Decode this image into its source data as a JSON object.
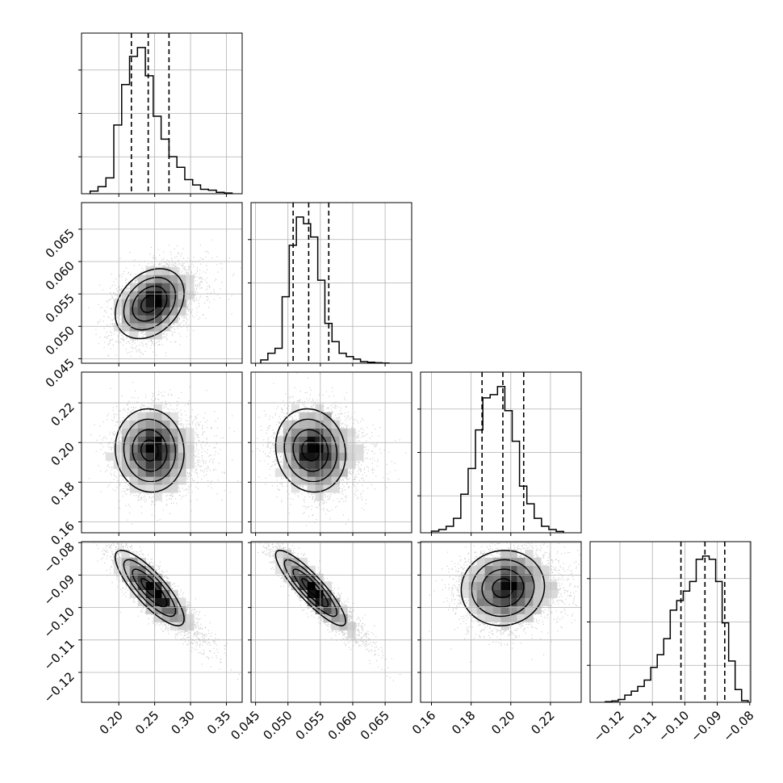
{
  "chart_data": {
    "type": "corner",
    "parameters": 4,
    "histograms": [
      {
        "edges_xlim": [
          0.148,
          0.372
        ],
        "bins": [
          0.16,
          0.171,
          0.182,
          0.193,
          0.204,
          0.215,
          0.226,
          0.237,
          0.248,
          0.259,
          0.27,
          0.281,
          0.292,
          0.303,
          0.314,
          0.325,
          0.336,
          0.347,
          0.358
        ],
        "counts": [
          0.015,
          0.04,
          0.09,
          0.39,
          0.62,
          0.78,
          0.83,
          0.67,
          0.44,
          0.31,
          0.21,
          0.15,
          0.08,
          0.05,
          0.025,
          0.02,
          0.008,
          0.004
        ],
        "quantiles": [
          0.2175,
          0.241,
          0.27
        ],
        "xticks": [
          0.2,
          0.25,
          0.3,
          0.35
        ],
        "xtick_labels": [
          "0.20",
          "0.25",
          "0.30",
          "0.35"
        ]
      },
      {
        "edges_xlim": [
          0.0443,
          0.0691
        ],
        "bins": [
          0.0458,
          0.0469,
          0.048,
          0.0491,
          0.0502,
          0.0513,
          0.0524,
          0.0535,
          0.0546,
          0.0557,
          0.0568,
          0.0579,
          0.059,
          0.0601,
          0.0612,
          0.0623,
          0.0634,
          0.0645,
          0.0656
        ],
        "counts": [
          0.02,
          0.06,
          0.09,
          0.4,
          0.71,
          0.88,
          0.84,
          0.76,
          0.5,
          0.24,
          0.13,
          0.06,
          0.04,
          0.025,
          0.01,
          0.006,
          0.003,
          0.001
        ],
        "quantiles": [
          0.0508,
          0.0532,
          0.0563
        ],
        "xticks": [
          0.045,
          0.05,
          0.055,
          0.06,
          0.065
        ],
        "xtick_labels": [
          "0.045",
          "0.050",
          "0.055",
          "0.060",
          "0.065"
        ]
      },
      {
        "edges_xlim": [
          0.1545,
          0.2355
        ],
        "bins": [
          0.16,
          0.1637,
          0.1674,
          0.1711,
          0.1748,
          0.1785,
          0.1822,
          0.1859,
          0.1896,
          0.1933,
          0.197,
          0.2007,
          0.2044,
          0.2081,
          0.2118,
          0.2155,
          0.2192,
          0.2229,
          0.2266
        ],
        "counts": [
          0.01,
          0.02,
          0.04,
          0.09,
          0.24,
          0.4,
          0.64,
          0.84,
          0.86,
          0.91,
          0.76,
          0.57,
          0.29,
          0.18,
          0.09,
          0.04,
          0.02,
          0.008
        ],
        "quantiles": [
          0.1855,
          0.196,
          0.2065
        ],
        "xticks": [
          0.16,
          0.18,
          0.2,
          0.22
        ],
        "xtick_labels": [
          "0.16",
          "0.18",
          "0.20",
          "0.22"
        ]
      },
      {
        "edges_xlim": [
          -0.1292,
          -0.0797
        ],
        "bins": [
          -0.1245,
          -0.1225,
          -0.1205,
          -0.1185,
          -0.1165,
          -0.1145,
          -0.1125,
          -0.1105,
          -0.1085,
          -0.1065,
          -0.1045,
          -0.1025,
          -0.1005,
          -0.0985,
          -0.0965,
          -0.0945,
          -0.0925,
          -0.0905,
          -0.0885,
          -0.0865,
          -0.0845,
          -0.0825,
          -0.0805
        ],
        "counts": [
          0.004,
          0.008,
          0.018,
          0.045,
          0.07,
          0.1,
          0.14,
          0.22,
          0.3,
          0.4,
          0.58,
          0.64,
          0.7,
          0.76,
          0.9,
          0.92,
          0.9,
          0.76,
          0.5,
          0.26,
          0.08,
          0.01
        ],
        "quantiles": [
          -0.1012,
          -0.0938,
          -0.0877
        ],
        "xticks": [
          -0.12,
          -0.11,
          -0.1,
          -0.09,
          -0.08
        ],
        "xtick_labels": [
          "−0.12",
          "−0.11",
          "−0.10",
          "−0.09",
          "−0.08"
        ]
      }
    ],
    "yaxes": [
      null,
      {
        "ylim": [
          0.0443,
          0.0691
        ],
        "yticks": [
          0.045,
          0.05,
          0.055,
          0.06,
          0.065
        ],
        "ytick_labels": [
          "0.045",
          "0.050",
          "0.055",
          "0.060",
          "0.065"
        ]
      },
      {
        "ylim": [
          0.1545,
          0.2355
        ],
        "yticks": [
          0.16,
          0.18,
          0.2,
          0.22
        ],
        "ytick_labels": [
          "0.16",
          "0.18",
          "0.20",
          "0.22"
        ]
      },
      {
        "ylim": [
          -0.1292,
          -0.0797
        ],
        "yticks": [
          -0.12,
          -0.11,
          -0.1,
          -0.09,
          -0.08
        ],
        "ytick_labels": [
          "−0.12",
          "−0.11",
          "−0.10",
          "−0.09",
          "−0.08"
        ]
      }
    ],
    "pairs": [
      {
        "row": 1,
        "col": 0,
        "mean": [
          0.243,
          0.0535
        ],
        "sd": [
          0.024,
          0.0027
        ],
        "corr": 0.3
      },
      {
        "row": 2,
        "col": 0,
        "mean": [
          0.243,
          0.196
        ],
        "sd": [
          0.024,
          0.0105
        ],
        "corr": -0.05
      },
      {
        "row": 2,
        "col": 1,
        "mean": [
          0.0535,
          0.196
        ],
        "sd": [
          0.0027,
          0.0105
        ],
        "corr": -0.1
      },
      {
        "row": 3,
        "col": 0,
        "mean": [
          0.243,
          -0.094
        ],
        "sd": [
          0.024,
          0.0058
        ],
        "corr": -0.82
      },
      {
        "row": 3,
        "col": 1,
        "mean": [
          0.0535,
          -0.094
        ],
        "sd": [
          0.0027,
          0.0058
        ],
        "corr": -0.88
      },
      {
        "row": 3,
        "col": 2,
        "mean": [
          0.196,
          -0.094
        ],
        "sd": [
          0.0105,
          0.0058
        ],
        "corr": 0.05
      }
    ],
    "grid": true,
    "colors": {
      "line": "#000000",
      "grid": "#b0b0b0",
      "points": "#777777",
      "density_dark": "#000000",
      "density_light": "#ffffff"
    }
  }
}
